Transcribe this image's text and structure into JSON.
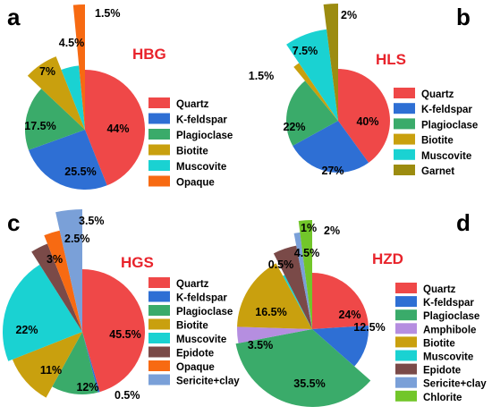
{
  "colors": {
    "Quartz": "#ef4848",
    "K-feldspar": "#2e6fd4",
    "Plagioclase": "#3aab6a",
    "Biotite": "#c9a00e",
    "Muscovite": "#1ad2d2",
    "Opaque": "#f76a12",
    "Garnet": "#9c8c10",
    "Epidote": "#7a4a48",
    "Sericite+clay": "#7aa0d8",
    "Amphibole": "#b58ee0",
    "Chlorite": "#72c62a"
  },
  "chart_data": [
    {
      "type": "pie",
      "panel": "a",
      "title": "HBG",
      "legend": [
        "Quartz",
        "K-feldspar",
        "Plagioclase",
        "Biotite",
        "Muscovite",
        "Opaque"
      ],
      "slices": [
        {
          "label": "Quartz",
          "value": 44,
          "text": "44%"
        },
        {
          "label": "K-feldspar",
          "value": 25.5,
          "text": "25.5%"
        },
        {
          "label": "Plagioclase",
          "value": 17.5,
          "text": "17.5%"
        },
        {
          "label": "Biotite",
          "value": 7,
          "text": "7%"
        },
        {
          "label": "Muscovite",
          "value": 4.5,
          "text": "4.5%"
        },
        {
          "label": "Opaque",
          "value": 1.5,
          "text": "1.5%"
        }
      ]
    },
    {
      "type": "pie",
      "panel": "b",
      "title": "HLS",
      "legend": [
        "Quartz",
        "K-feldspar",
        "Plagioclase",
        "Biotite",
        "Muscovite",
        "Garnet"
      ],
      "slices": [
        {
          "label": "Quartz",
          "value": 40,
          "text": "40%"
        },
        {
          "label": "K-feldspar",
          "value": 27,
          "text": "27%"
        },
        {
          "label": "Plagioclase",
          "value": 22,
          "text": "22%"
        },
        {
          "label": "Biotite",
          "value": 1.5,
          "text": "1.5%"
        },
        {
          "label": "Muscovite",
          "value": 7.5,
          "text": "7.5%"
        },
        {
          "label": "Garnet",
          "value": 2,
          "text": "2%"
        }
      ]
    },
    {
      "type": "pie",
      "panel": "c",
      "title": "HGS",
      "legend": [
        "Quartz",
        "K-feldspar",
        "Plagioclase",
        "Biotite",
        "Muscovite",
        "Epidote",
        "Opaque",
        "Sericite+clay"
      ],
      "slices": [
        {
          "label": "Quartz",
          "value": 45.5,
          "text": "45.5%"
        },
        {
          "label": "K-feldspar",
          "value": 0.5,
          "text": "0.5%"
        },
        {
          "label": "Plagioclase",
          "value": 12,
          "text": "12%"
        },
        {
          "label": "Biotite",
          "value": 11,
          "text": "11%"
        },
        {
          "label": "Muscovite",
          "value": 22,
          "text": "22%"
        },
        {
          "label": "Epidote",
          "value": 3,
          "text": "3%"
        },
        {
          "label": "Opaque",
          "value": 2.5,
          "text": "2.5%"
        },
        {
          "label": "Sericite+clay",
          "value": 3.5,
          "text": "3.5%"
        }
      ]
    },
    {
      "type": "pie",
      "panel": "d",
      "title": "HZD",
      "legend": [
        "Quartz",
        "K-feldspar",
        "Plagioclase",
        "Amphibole",
        "Biotite",
        "Muscovite",
        "Epidote",
        "Sericite+clay",
        "Chlorite"
      ],
      "slices": [
        {
          "label": "Quartz",
          "value": 24,
          "text": "24%"
        },
        {
          "label": "K-feldspar",
          "value": 12.5,
          "text": "12.5%"
        },
        {
          "label": "Plagioclase",
          "value": 35.5,
          "text": "35.5%"
        },
        {
          "label": "Amphibole",
          "value": 3.5,
          "text": "3.5%"
        },
        {
          "label": "Biotite",
          "value": 16.5,
          "text": "16.5%"
        },
        {
          "label": "Muscovite",
          "value": 0.5,
          "text": "0.5%"
        },
        {
          "label": "Epidote",
          "value": 4.5,
          "text": "4.5%"
        },
        {
          "label": "Sericite+clay",
          "value": 1,
          "text": "1%"
        },
        {
          "label": "Chlorite",
          "value": 2,
          "text": "2%"
        }
      ]
    }
  ]
}
